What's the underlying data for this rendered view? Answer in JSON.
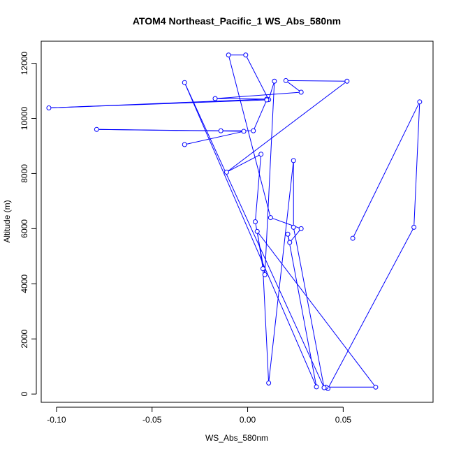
{
  "chart_data": {
    "type": "line",
    "title": "ATOM4 Northeast_Pacific_1 WS_Abs_580nm",
    "xlabel": "WS_Abs_580nm",
    "ylabel": "Altitude (m)",
    "xlim": [
      -0.108,
      0.097
    ],
    "ylim": [
      -300,
      12800
    ],
    "x_ticks": [
      -0.1,
      -0.05,
      0.0,
      0.05
    ],
    "x_tick_labels": [
      "-0.10",
      "-0.05",
      "0.00",
      "0.05"
    ],
    "y_ticks": [
      0,
      2000,
      4000,
      6000,
      8000,
      10000,
      12000
    ],
    "y_tick_labels": [
      "0",
      "2000",
      "4000",
      "6000",
      "8000",
      "10000",
      "12000"
    ],
    "grid": false,
    "markers": "open-circle",
    "line_color": "#0000ff",
    "series": [
      {
        "x": [
          0.055,
          0.09,
          0.087,
          0.042,
          0.041,
          0.067,
          0.005,
          0.008,
          0.011,
          0.024,
          0.024,
          0.04,
          -0.033,
          0.036,
          0.021,
          0.022,
          0.028,
          0.012,
          -0.01,
          -0.001,
          0.011,
          0.014,
          0.009,
          0.004,
          0.007,
          -0.011,
          0.052,
          0.02,
          0.028,
          -0.017,
          0.01,
          -0.104,
          0.01,
          0.003,
          -0.014,
          -0.079,
          -0.002,
          -0.033
        ],
        "y": [
          5650,
          10600,
          6050,
          200,
          250,
          250,
          5900,
          4550,
          400,
          8470,
          6050,
          230,
          11300,
          260,
          5800,
          5500,
          6000,
          6400,
          12300,
          12300,
          10680,
          11350,
          4330,
          6250,
          8700,
          8050,
          11350,
          11370,
          10950,
          10720,
          10700,
          10380,
          10670,
          9550,
          9550,
          9600,
          9530,
          9050
        ]
      }
    ]
  }
}
